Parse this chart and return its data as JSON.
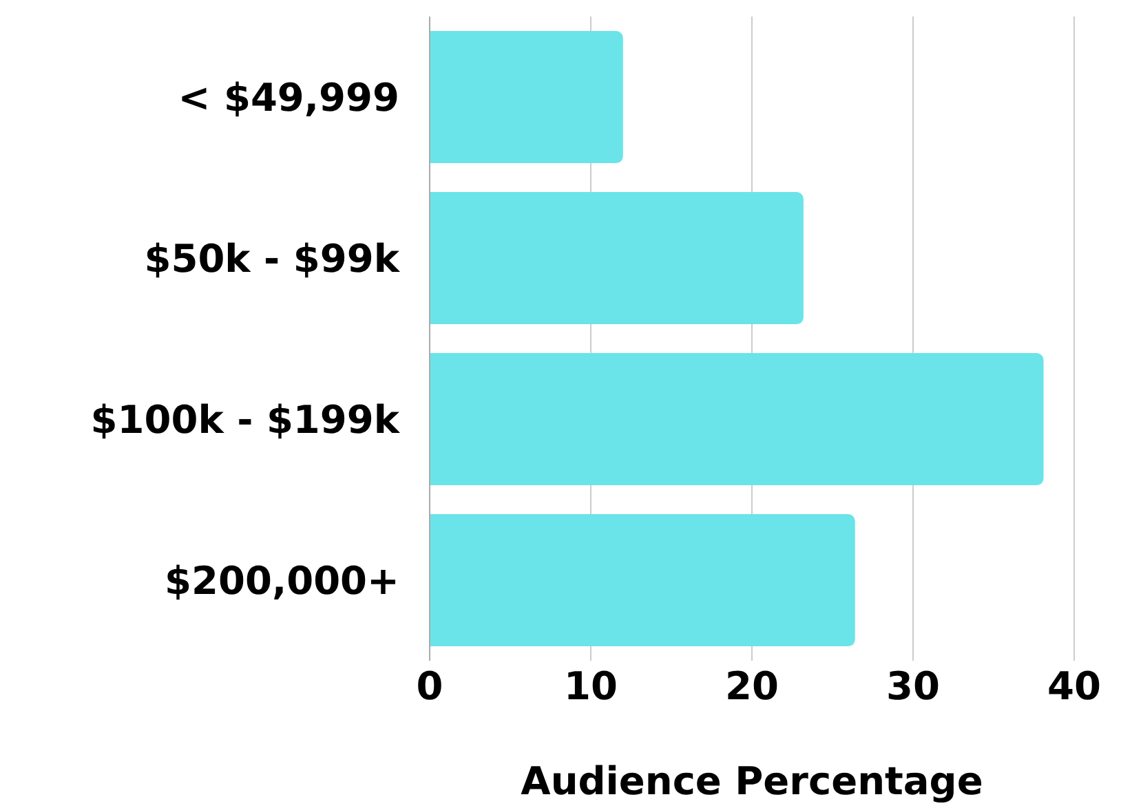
{
  "chart_data": {
    "type": "bar",
    "orientation": "horizontal",
    "xlabel": "Audience Percentage",
    "categories": [
      "< $49,999",
      "$50k - $99k",
      "$100k - $199k",
      "$200,000+"
    ],
    "values": [
      12,
      23.2,
      38.1,
      26.4
    ],
    "color": "#6ae4e8",
    "xlim": [
      0,
      40
    ],
    "xticks": [
      0,
      10,
      20,
      30,
      40
    ],
    "grid": "x"
  }
}
